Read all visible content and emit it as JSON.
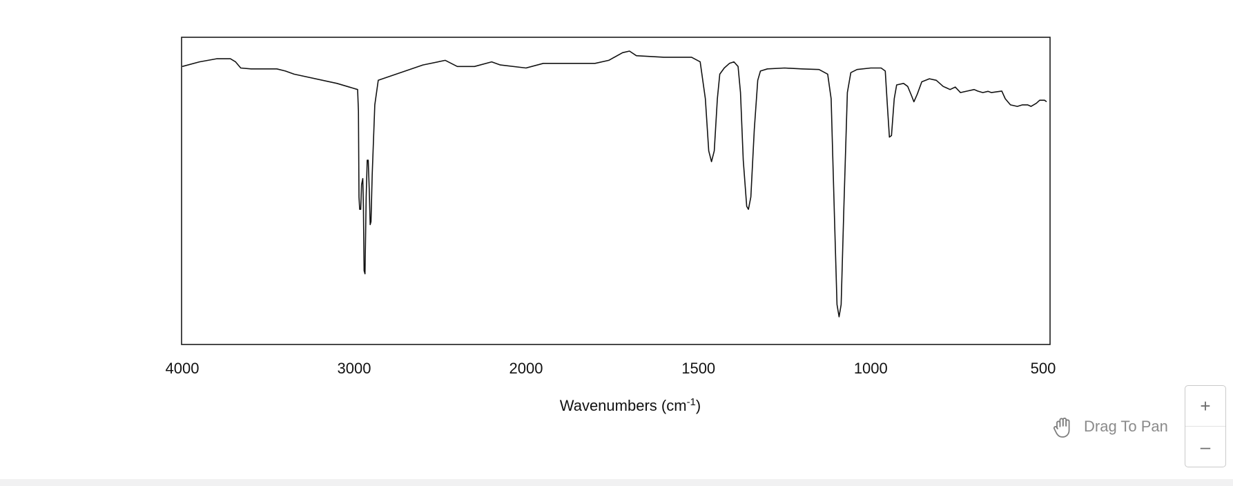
{
  "chart_data": {
    "type": "line",
    "title": "",
    "xlabel": "Wavenumbers",
    "xlabel_unit_base": "cm",
    "xlabel_unit_sup": "-1",
    "xlabel_close": ")",
    "ylabel": "",
    "x_tick_labels": [
      "4000",
      "3000",
      "2000",
      "1500",
      "1000",
      "500"
    ],
    "y_range": [
      0,
      100
    ],
    "grid": false,
    "series": [
      {
        "points": [
          [
            4000,
            90.5
          ],
          [
            3900,
            92
          ],
          [
            3800,
            93
          ],
          [
            3720,
            93
          ],
          [
            3690,
            92
          ],
          [
            3660,
            90
          ],
          [
            3600,
            89.7
          ],
          [
            3450,
            89.7
          ],
          [
            3400,
            89
          ],
          [
            3350,
            88
          ],
          [
            3100,
            85
          ],
          [
            2980,
            83
          ],
          [
            2975,
            76
          ],
          [
            2972,
            48
          ],
          [
            2968,
            44
          ],
          [
            2962,
            44
          ],
          [
            2957,
            52
          ],
          [
            2950,
            54
          ],
          [
            2946,
            45
          ],
          [
            2942,
            24
          ],
          [
            2937,
            23
          ],
          [
            2930,
            48
          ],
          [
            2924,
            60
          ],
          [
            2918,
            60
          ],
          [
            2912,
            50
          ],
          [
            2907,
            39
          ],
          [
            2902,
            40
          ],
          [
            2895,
            55
          ],
          [
            2880,
            78
          ],
          [
            2860,
            86
          ],
          [
            2600,
            91
          ],
          [
            2470,
            92.5
          ],
          [
            2400,
            90.5
          ],
          [
            2300,
            90.5
          ],
          [
            2200,
            92
          ],
          [
            2150,
            91
          ],
          [
            2000,
            90
          ],
          [
            1950,
            91.5
          ],
          [
            1800,
            91.5
          ],
          [
            1760,
            92.5
          ],
          [
            1720,
            95
          ],
          [
            1700,
            95.5
          ],
          [
            1680,
            94
          ],
          [
            1600,
            93.5
          ],
          [
            1520,
            93.5
          ],
          [
            1495,
            92
          ],
          [
            1480,
            80
          ],
          [
            1470,
            63
          ],
          [
            1462,
            59.5
          ],
          [
            1454,
            63
          ],
          [
            1445,
            80
          ],
          [
            1438,
            88
          ],
          [
            1425,
            90
          ],
          [
            1410,
            91.5
          ],
          [
            1397,
            92
          ],
          [
            1385,
            90.5
          ],
          [
            1378,
            82
          ],
          [
            1370,
            60
          ],
          [
            1360,
            45
          ],
          [
            1355,
            44
          ],
          [
            1348,
            48
          ],
          [
            1338,
            70
          ],
          [
            1328,
            86
          ],
          [
            1320,
            89
          ],
          [
            1300,
            89.7
          ],
          [
            1250,
            90
          ],
          [
            1200,
            89.7
          ],
          [
            1150,
            89.5
          ],
          [
            1125,
            88
          ],
          [
            1115,
            80
          ],
          [
            1105,
            40
          ],
          [
            1098,
            13
          ],
          [
            1092,
            9
          ],
          [
            1086,
            13
          ],
          [
            1078,
            45
          ],
          [
            1068,
            82
          ],
          [
            1058,
            88.5
          ],
          [
            1040,
            89.5
          ],
          [
            1000,
            90
          ],
          [
            970,
            90
          ],
          [
            958,
            89
          ],
          [
            952,
            78
          ],
          [
            946,
            67.5
          ],
          [
            940,
            68
          ],
          [
            932,
            80
          ],
          [
            925,
            84.5
          ],
          [
            905,
            85
          ],
          [
            893,
            84
          ],
          [
            882,
            81
          ],
          [
            875,
            79
          ],
          [
            865,
            81.5
          ],
          [
            852,
            85.5
          ],
          [
            830,
            86.5
          ],
          [
            810,
            86
          ],
          [
            790,
            84
          ],
          [
            780,
            83.5
          ],
          [
            770,
            83
          ],
          [
            755,
            83.8
          ],
          [
            740,
            82
          ],
          [
            720,
            82.5
          ],
          [
            700,
            83
          ],
          [
            690,
            82.5
          ],
          [
            675,
            82
          ],
          [
            660,
            82.4
          ],
          [
            650,
            82
          ],
          [
            620,
            82.5
          ],
          [
            610,
            80
          ],
          [
            595,
            78
          ],
          [
            575,
            77.5
          ],
          [
            560,
            78
          ],
          [
            545,
            78
          ],
          [
            535,
            77.5
          ],
          [
            520,
            78.5
          ],
          [
            510,
            79.5
          ],
          [
            496,
            79.5
          ],
          [
            490,
            79
          ]
        ]
      }
    ]
  },
  "controls": {
    "pan_label": "Drag To Pan",
    "pan_icon": "hand-icon",
    "zoom_in_label": "+",
    "zoom_out_label": "–"
  }
}
